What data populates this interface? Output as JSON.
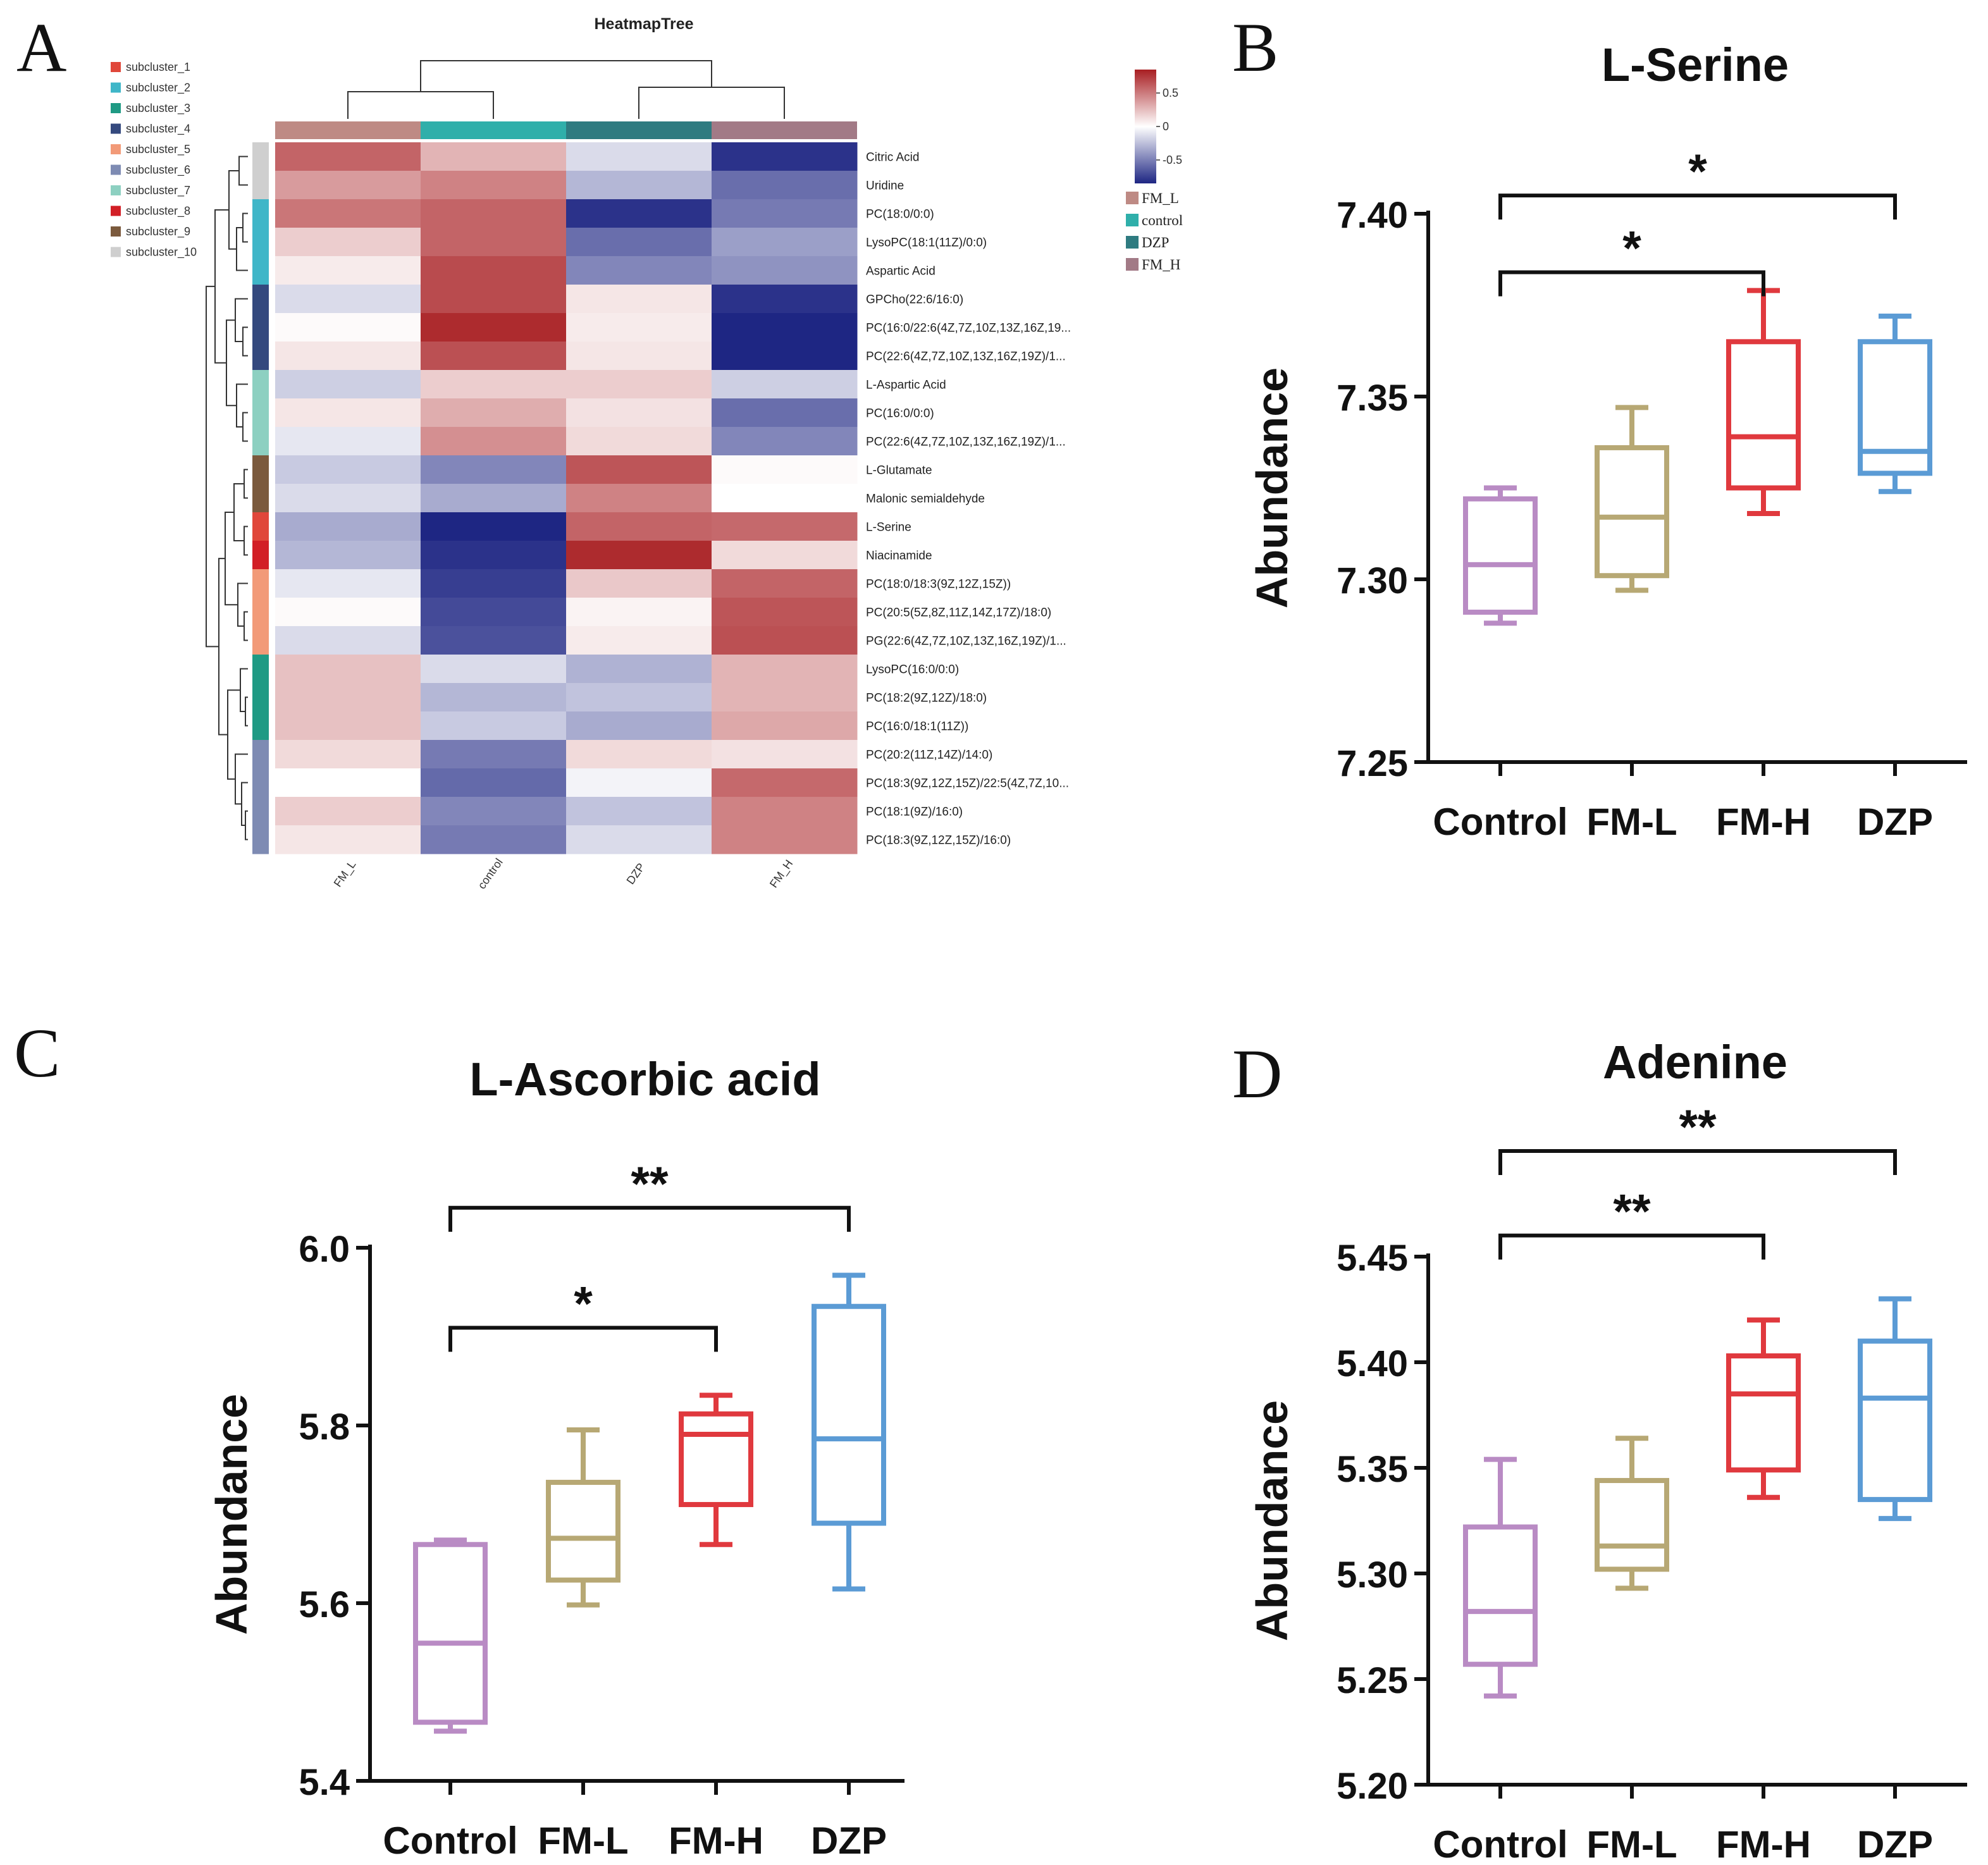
{
  "panel_letters": [
    "A",
    "B",
    "C",
    "D"
  ],
  "colors": {
    "Control": "#B98BC4",
    "FM-L": "#B7A874",
    "FM-H": "#E0393E",
    "DZP": "#5B9BD5",
    "axis": "#111111",
    "heat_low": "#1E2683",
    "heat_mid": "#FFFFFF",
    "heat_high": "#A81E22"
  },
  "chart_data": [
    {
      "panel": "A",
      "type": "heatmap",
      "title": "HeatmapTree",
      "columns": [
        "FM_L",
        "control",
        "DZP",
        "FM_H"
      ],
      "column_colors": [
        "#BE8A84",
        "#2FAFAA",
        "#2E7B80",
        "#A27A86"
      ],
      "group_legend": [
        {
          "label": "FM_L",
          "color": "#BE8A84"
        },
        {
          "label": "control",
          "color": "#2FAFAA"
        },
        {
          "label": "DZP",
          "color": "#2E7B80"
        },
        {
          "label": "FM_H",
          "color": "#A27A86"
        }
      ],
      "colorbar": {
        "ticks": [
          0.5,
          0,
          -0.5
        ],
        "tick_labels": [
          "0.5",
          "0",
          "-0.5"
        ],
        "range": [
          -0.85,
          0.85
        ]
      },
      "subcluster_legend": [
        {
          "label": "subcluster_1",
          "color": "#E0473A"
        },
        {
          "label": "subcluster_2",
          "color": "#3FB6C8"
        },
        {
          "label": "subcluster_3",
          "color": "#1F9A84"
        },
        {
          "label": "subcluster_4",
          "color": "#34497E"
        },
        {
          "label": "subcluster_5",
          "color": "#F29A78"
        },
        {
          "label": "subcluster_6",
          "color": "#7E8BB3"
        },
        {
          "label": "subcluster_7",
          "color": "#8DD0C1"
        },
        {
          "label": "subcluster_8",
          "color": "#D21F26"
        },
        {
          "label": "subcluster_9",
          "color": "#7B5A3D"
        },
        {
          "label": "subcluster_10",
          "color": "#CFCFCF"
        }
      ],
      "rows": [
        {
          "label": "Citric Acid",
          "cluster": 10,
          "values": [
            0.62,
            0.3,
            -0.15,
            -0.85
          ]
        },
        {
          "label": "Uridine",
          "cluster": 10,
          "values": [
            0.4,
            0.5,
            -0.3,
            -0.6
          ]
        },
        {
          "label": "PC(18:0/0:0)",
          "cluster": 2,
          "values": [
            0.55,
            0.62,
            -0.85,
            -0.55
          ]
        },
        {
          "label": "LysoPC(18:1(11Z)/0:0)",
          "cluster": 2,
          "values": [
            0.2,
            0.62,
            -0.6,
            -0.4
          ]
        },
        {
          "label": "Aspartic Acid",
          "cluster": 2,
          "values": [
            0.08,
            0.72,
            -0.5,
            -0.45
          ]
        },
        {
          "label": "GPCho(22:6/16:0)",
          "cluster": 4,
          "values": [
            -0.15,
            0.72,
            0.1,
            -0.85
          ]
        },
        {
          "label": "PC(16:0/22:6(4Z,7Z,10Z,13Z,16Z,19...",
          "cluster": 4,
          "values": [
            0.02,
            0.85,
            0.08,
            -0.95
          ]
        },
        {
          "label": "PC(22:6(4Z,7Z,10Z,13Z,16Z,19Z)/1...",
          "cluster": 4,
          "values": [
            0.1,
            0.7,
            0.1,
            -0.95
          ]
        },
        {
          "label": "L-Aspartic Acid",
          "cluster": 7,
          "values": [
            -0.2,
            0.2,
            0.2,
            -0.2
          ]
        },
        {
          "label": "PC(16:0/0:0)",
          "cluster": 7,
          "values": [
            0.1,
            0.33,
            0.12,
            -0.6
          ]
        },
        {
          "label": "PC(22:6(4Z,7Z,10Z,13Z,16Z,19Z)/1...",
          "cluster": 7,
          "values": [
            -0.1,
            0.45,
            0.15,
            -0.5
          ]
        },
        {
          "label": "L-Glutamate",
          "cluster": 9,
          "values": [
            -0.22,
            -0.5,
            0.68,
            0.02
          ]
        },
        {
          "label": "Malonic semialdehyde",
          "cluster": 9,
          "values": [
            -0.15,
            -0.35,
            0.5,
            0.0
          ]
        },
        {
          "label": "L-Serine",
          "cluster": 1,
          "values": [
            -0.35,
            -0.9,
            0.62,
            0.6
          ]
        },
        {
          "label": "Niacinamide",
          "cluster": 8,
          "values": [
            -0.3,
            -0.85,
            0.85,
            0.15
          ]
        },
        {
          "label": "PC(18:0/18:3(9Z,12Z,15Z))",
          "cluster": 5,
          "values": [
            -0.1,
            -0.8,
            0.22,
            0.62
          ]
        },
        {
          "label": "PC(20:5(5Z,8Z,11Z,14Z,17Z)/18:0)",
          "cluster": 5,
          "values": [
            0.02,
            -0.75,
            0.05,
            0.68
          ]
        },
        {
          "label": "PG(22:6(4Z,7Z,10Z,13Z,16Z,19Z)/1...",
          "cluster": 5,
          "values": [
            -0.15,
            -0.72,
            0.08,
            0.7
          ]
        },
        {
          "label": "LysoPC(16:0/0:0)",
          "cluster": 3,
          "values": [
            0.25,
            -0.15,
            -0.32,
            0.3
          ]
        },
        {
          "label": "PC(18:2(9Z,12Z)/18:0)",
          "cluster": 3,
          "values": [
            0.25,
            -0.3,
            -0.25,
            0.3
          ]
        },
        {
          "label": "PC(16:0/18:1(11Z))",
          "cluster": 3,
          "values": [
            0.25,
            -0.22,
            -0.35,
            0.35
          ]
        },
        {
          "label": "PC(20:2(11Z,14Z)/14:0)",
          "cluster": 6,
          "values": [
            0.15,
            -0.55,
            0.15,
            0.12
          ]
        },
        {
          "label": "PC(18:3(9Z,12Z,15Z)/22:5(4Z,7Z,10...",
          "cluster": 6,
          "values": [
            0.0,
            -0.62,
            -0.05,
            0.6
          ]
        },
        {
          "label": "PC(18:1(9Z)/16:0)",
          "cluster": 6,
          "values": [
            0.2,
            -0.5,
            -0.25,
            0.5
          ]
        },
        {
          "label": "PC(18:3(9Z,12Z,15Z)/16:0)",
          "cluster": 6,
          "values": [
            0.1,
            -0.55,
            -0.15,
            0.5
          ]
        }
      ]
    },
    {
      "panel": "B",
      "type": "box",
      "title": "L-Serine",
      "ylabel": "Abundance",
      "ylim": [
        7.25,
        7.4
      ],
      "yticks": [
        7.25,
        7.3,
        7.35,
        7.4
      ],
      "ytick_labels": [
        "7.25",
        "7.30",
        "7.35",
        "7.40"
      ],
      "categories": [
        "Control",
        "FM-L",
        "FM-H",
        "DZP"
      ],
      "boxes": [
        {
          "min": 7.288,
          "q1": 7.291,
          "median": 7.304,
          "q3": 7.322,
          "max": 7.325
        },
        {
          "min": 7.297,
          "q1": 7.301,
          "median": 7.317,
          "q3": 7.336,
          "max": 7.347
        },
        {
          "min": 7.318,
          "q1": 7.325,
          "median": 7.339,
          "q3": 7.365,
          "max": 7.379
        },
        {
          "min": 7.324,
          "q1": 7.329,
          "median": 7.335,
          "q3": 7.365,
          "max": 7.372
        }
      ],
      "brackets": [
        {
          "from": "Control",
          "to": "FM-H",
          "y": 7.384,
          "label": "*"
        },
        {
          "from": "Control",
          "to": "DZP",
          "y": 7.405,
          "label": "*"
        }
      ]
    },
    {
      "panel": "C",
      "type": "box",
      "title": "L-Ascorbic acid",
      "ylabel": "Abundance",
      "ylim": [
        5.4,
        6.0
      ],
      "yticks": [
        5.4,
        5.6,
        5.8,
        6.0
      ],
      "ytick_labels": [
        "5.4",
        "5.6",
        "5.8",
        "6.0"
      ],
      "categories": [
        "Control",
        "FM-L",
        "FM-H",
        "DZP"
      ],
      "boxes": [
        {
          "min": 5.456,
          "q1": 5.466,
          "median": 5.555,
          "q3": 5.666,
          "max": 5.671
        },
        {
          "min": 5.598,
          "q1": 5.626,
          "median": 5.673,
          "q3": 5.736,
          "max": 5.795
        },
        {
          "min": 5.666,
          "q1": 5.711,
          "median": 5.79,
          "q3": 5.813,
          "max": 5.834
        },
        {
          "min": 5.616,
          "q1": 5.69,
          "median": 5.785,
          "q3": 5.934,
          "max": 5.969
        }
      ],
      "brackets": [
        {
          "from": "Control",
          "to": "FM-H",
          "y": 5.91,
          "label": "*"
        },
        {
          "from": "Control",
          "to": "DZP",
          "y": 6.045,
          "label": "**"
        }
      ]
    },
    {
      "panel": "D",
      "type": "box",
      "title": "Adenine",
      "ylabel": "Abundance",
      "ylim": [
        5.2,
        5.45
      ],
      "yticks": [
        5.2,
        5.25,
        5.3,
        5.35,
        5.4,
        5.45
      ],
      "ytick_labels": [
        "5.20",
        "5.25",
        "5.30",
        "5.35",
        "5.40",
        "5.45"
      ],
      "categories": [
        "Control",
        "FM-L",
        "FM-H",
        "DZP"
      ],
      "boxes": [
        {
          "min": 5.242,
          "q1": 5.257,
          "median": 5.282,
          "q3": 5.322,
          "max": 5.354
        },
        {
          "min": 5.293,
          "q1": 5.302,
          "median": 5.313,
          "q3": 5.344,
          "max": 5.364
        },
        {
          "min": 5.336,
          "q1": 5.349,
          "median": 5.385,
          "q3": 5.403,
          "max": 5.42
        },
        {
          "min": 5.326,
          "q1": 5.335,
          "median": 5.383,
          "q3": 5.41,
          "max": 5.43
        }
      ],
      "brackets": [
        {
          "from": "Control",
          "to": "FM-H",
          "y": 5.46,
          "label": "**"
        },
        {
          "from": "Control",
          "to": "DZP",
          "y": 5.5,
          "label": "**"
        }
      ]
    }
  ]
}
